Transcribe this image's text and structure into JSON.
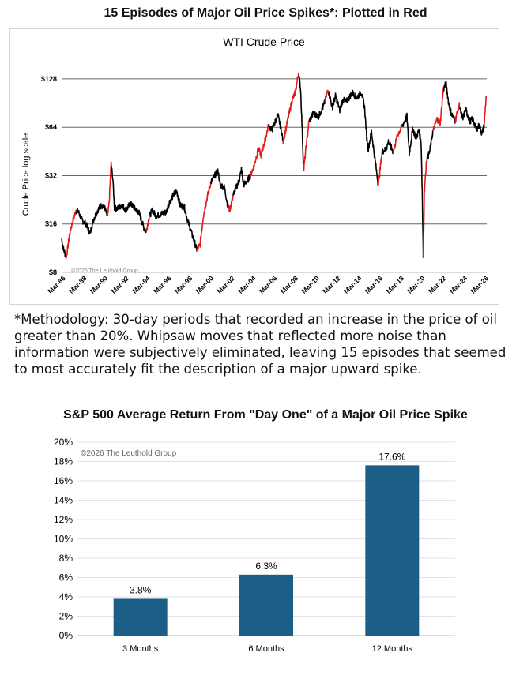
{
  "top_title": "15 Episodes of Major Oil Price Spikes*: Plotted in Red",
  "methodology": "*Methodology: 30-day periods that recorded an increase in the price of oil greater than 20%. Whipsaw moves that reflected more noise than information were subjectively eliminated, leaving 15 episodes that seemed to most accurately fit the description of a major upward spike.",
  "bottom_title": "S&P 500 Average Return From \"Day One\" of a Major Oil Price Spike",
  "colors": {
    "normal_line": "#000000",
    "spike_line": "#e31a1c",
    "bar": "#1b5e87"
  },
  "chart_data": [
    {
      "type": "line",
      "title": "WTI Crude Price",
      "ylabel": "Crude Price log scale",
      "y_scale": "log2",
      "ylim": [
        8,
        140
      ],
      "y_ticks": [
        "$8",
        "$16",
        "$32",
        "$64",
        "$128"
      ],
      "x_ticks": [
        "Mar-86",
        "Mar-88",
        "Mar-90",
        "Mar-92",
        "Mar-94",
        "Mar-96",
        "Mar-98",
        "Mar-00",
        "Mar-02",
        "Mar-04",
        "Mar-06",
        "Mar-08",
        "Mar-10",
        "Mar-12",
        "Mar-14",
        "Mar-16",
        "Mar-18",
        "Mar-20",
        "Mar-22",
        "Mar-24",
        "Mar-26"
      ],
      "xlim": [
        1986.1,
        2026.3
      ],
      "watermark": "©2026 The Leuthold Group",
      "grid": "horizontal",
      "series": [
        {
          "points": [
            [
              1986.1,
              13
            ],
            [
              1986.3,
              11
            ],
            [
              1986.55,
              10
            ],
            [
              1986.9,
              14.5
            ],
            [
              1987.2,
              17
            ],
            [
              1987.45,
              19.5
            ],
            [
              1987.7,
              19
            ],
            [
              1988.0,
              17
            ],
            [
              1988.4,
              16
            ],
            [
              1988.8,
              14
            ],
            [
              1989.1,
              17
            ],
            [
              1989.5,
              19.5
            ],
            [
              1989.9,
              21
            ],
            [
              1990.2,
              20
            ],
            [
              1990.45,
              17.5
            ],
            [
              1990.6,
              22
            ],
            [
              1990.78,
              38
            ],
            [
              1990.95,
              30
            ],
            [
              1991.1,
              20
            ],
            [
              1991.4,
              20
            ],
            [
              1991.8,
              21
            ],
            [
              1992.2,
              19.5
            ],
            [
              1992.6,
              21.5
            ],
            [
              1993.0,
              20
            ],
            [
              1993.4,
              19
            ],
            [
              1993.9,
              15
            ],
            [
              1994.1,
              14.5
            ],
            [
              1994.4,
              18
            ],
            [
              1994.7,
              19.5
            ],
            [
              1995.0,
              18
            ],
            [
              1995.5,
              18.5
            ],
            [
              1996.0,
              19
            ],
            [
              1996.3,
              22
            ],
            [
              1996.8,
              25
            ],
            [
              1997.0,
              25.5
            ],
            [
              1997.3,
              21
            ],
            [
              1997.7,
              20.5
            ],
            [
              1998.0,
              17
            ],
            [
              1998.4,
              14
            ],
            [
              1998.9,
              11
            ],
            [
              1999.2,
              12
            ],
            [
              1999.5,
              18
            ],
            [
              1999.9,
              24
            ],
            [
              2000.2,
              29
            ],
            [
              2000.7,
              33
            ],
            [
              2000.9,
              34
            ],
            [
              2001.1,
              28
            ],
            [
              2001.5,
              27
            ],
            [
              2001.8,
              21
            ],
            [
              2002.0,
              19.5
            ],
            [
              2002.3,
              24
            ],
            [
              2002.6,
              27
            ],
            [
              2002.9,
              30
            ],
            [
              2003.1,
              35
            ],
            [
              2003.3,
              28
            ],
            [
              2003.7,
              30
            ],
            [
              2003.95,
              32
            ],
            [
              2004.3,
              37
            ],
            [
              2004.7,
              47
            ],
            [
              2004.95,
              43
            ],
            [
              2005.3,
              52
            ],
            [
              2005.65,
              65
            ],
            [
              2006.0,
              62
            ],
            [
              2006.55,
              76
            ],
            [
              2006.9,
              60
            ],
            [
              2007.05,
              52
            ],
            [
              2007.5,
              72
            ],
            [
              2007.9,
              95
            ],
            [
              2008.2,
              105
            ],
            [
              2008.5,
              140
            ],
            [
              2008.7,
              110
            ],
            [
              2008.9,
              50
            ],
            [
              2008.98,
              34
            ],
            [
              2009.2,
              47
            ],
            [
              2009.5,
              70
            ],
            [
              2009.9,
              78
            ],
            [
              2010.4,
              75
            ],
            [
              2010.9,
              88
            ],
            [
              2011.3,
              110
            ],
            [
              2011.7,
              85
            ],
            [
              2012.0,
              100
            ],
            [
              2012.4,
              82
            ],
            [
              2012.7,
              95
            ],
            [
              2013.0,
              92
            ],
            [
              2013.6,
              105
            ],
            [
              2014.0,
              98
            ],
            [
              2014.45,
              106
            ],
            [
              2014.75,
              85
            ],
            [
              2014.95,
              55
            ],
            [
              2015.1,
              47
            ],
            [
              2015.4,
              60
            ],
            [
              2015.7,
              42
            ],
            [
              2016.05,
              28
            ],
            [
              2016.4,
              45
            ],
            [
              2016.8,
              47
            ],
            [
              2017.0,
              52
            ],
            [
              2017.45,
              45
            ],
            [
              2017.9,
              58
            ],
            [
              2018.3,
              65
            ],
            [
              2018.75,
              75
            ],
            [
              2018.98,
              44
            ],
            [
              2019.3,
              63
            ],
            [
              2019.6,
              55
            ],
            [
              2019.9,
              61
            ],
            [
              2020.1,
              50
            ],
            [
              2020.2,
              25
            ],
            [
              2020.3,
              10
            ],
            [
              2020.4,
              25
            ],
            [
              2020.6,
              40
            ],
            [
              2020.9,
              45
            ],
            [
              2021.2,
              60
            ],
            [
              2021.6,
              72
            ],
            [
              2021.9,
              68
            ],
            [
              2022.0,
              80
            ],
            [
              2022.2,
              110
            ],
            [
              2022.45,
              120
            ],
            [
              2022.7,
              90
            ],
            [
              2022.95,
              78
            ],
            [
              2023.3,
              70
            ],
            [
              2023.7,
              88
            ],
            [
              2024.0,
              72
            ],
            [
              2024.3,
              83
            ],
            [
              2024.7,
              70
            ],
            [
              2025.0,
              72
            ],
            [
              2025.3,
              62
            ],
            [
              2025.6,
              66
            ],
            [
              2025.85,
              58
            ],
            [
              2026.05,
              66
            ],
            [
              2026.25,
              100
            ]
          ]
        },
        {
          "name": "spike",
          "ranges": [
            [
              1986.55,
              1987.45
            ],
            [
              1990.45,
              1990.78
            ],
            [
              1994.1,
              1994.4
            ],
            [
              1998.9,
              2000.2
            ],
            [
              2001.9,
              2002.3
            ],
            [
              2003.95,
              2005.65
            ],
            [
              2007.05,
              2008.5
            ],
            [
              2009.0,
              2009.5
            ],
            [
              2011.0,
              2011.3
            ],
            [
              2016.05,
              2016.4
            ],
            [
              2017.45,
              2018.3
            ],
            [
              2020.3,
              2020.6
            ],
            [
              2021.2,
              2022.2
            ],
            [
              2023.3,
              2023.7
            ],
            [
              2026.05,
              2026.25
            ]
          ]
        }
      ]
    },
    {
      "type": "bar",
      "watermark": "©2026 The Leuthold Group",
      "categories": [
        "3 Months",
        "6 Months",
        "12 Months"
      ],
      "values": [
        3.8,
        6.3,
        17.6
      ],
      "value_labels": [
        "3.8%",
        "6.3%",
        "17.6%"
      ],
      "ylim": [
        0,
        20
      ],
      "y_ticks": [
        "0%",
        "2%",
        "4%",
        "6%",
        "8%",
        "10%",
        "12%",
        "14%",
        "16%",
        "18%",
        "20%"
      ],
      "grid": "horizontal"
    }
  ]
}
